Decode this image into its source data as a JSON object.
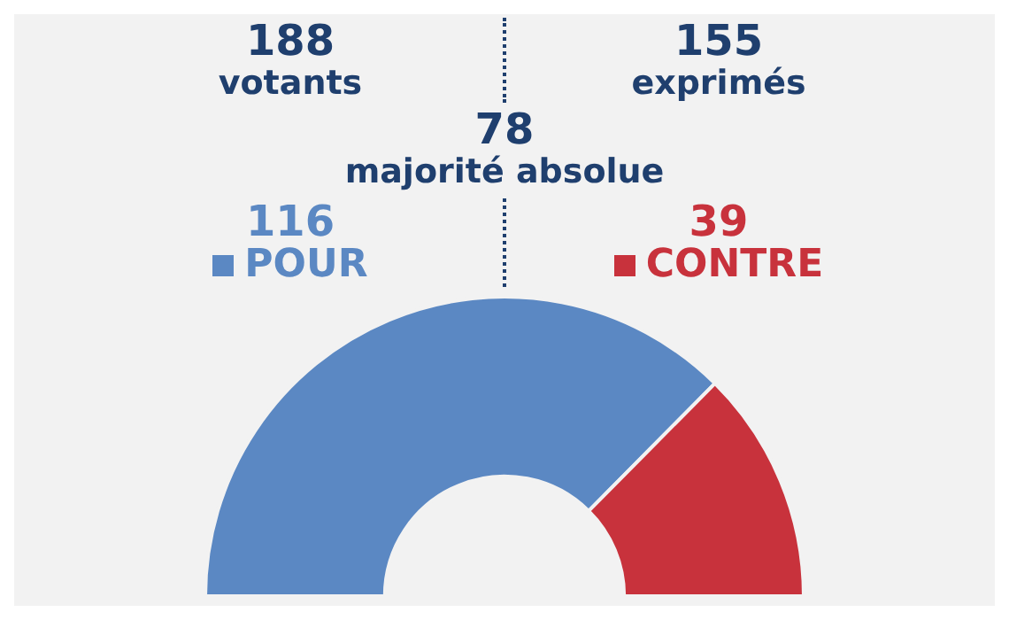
{
  "chart_data": {
    "type": "donut",
    "annotations": [
      "188 votants",
      "155 exprimés",
      "78 majorité absolue"
    ],
    "categories": [
      "POUR",
      "CONTRE"
    ],
    "values": [
      116,
      39
    ],
    "colors": [
      "#5b88c3",
      "#c8323c"
    ],
    "data_labels": true,
    "legend": "top"
  }
}
